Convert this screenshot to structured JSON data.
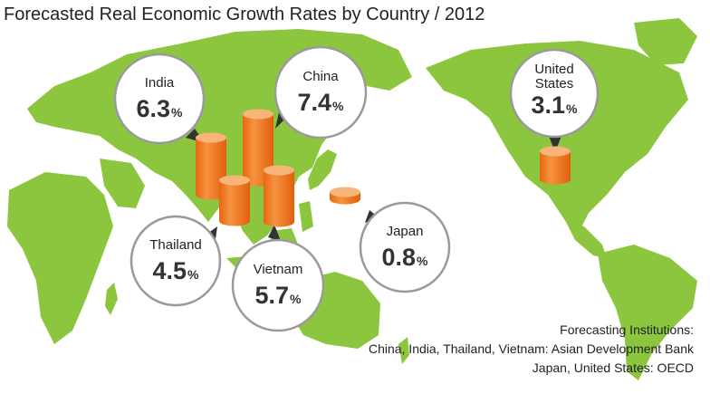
{
  "chart_data": {
    "type": "bar",
    "title": "Forecasted Real Economic Growth Rates by Country / 2012",
    "unit": "%",
    "categories": [
      "India",
      "China",
      "United States",
      "Thailand",
      "Vietnam",
      "Japan"
    ],
    "labels": [
      [
        "India"
      ],
      [
        "China"
      ],
      [
        "United",
        "States"
      ],
      [
        "Thailand"
      ],
      [
        "Vietnam"
      ],
      [
        "Japan"
      ]
    ],
    "values": [
      6.3,
      7.4,
      3.1,
      4.5,
      5.7,
      0.8
    ],
    "value_labels": [
      "6.3",
      "7.4",
      "3.1",
      "4.5",
      "5.7",
      "0.8"
    ]
  },
  "source": {
    "heading": "Forecasting Institutions:",
    "lines": [
      "China, India, Thailand, Vietnam: Asian Development Bank",
      "Japan, United States: OECD"
    ]
  },
  "colors": {
    "land": "#8cc63f",
    "cylinder_side": "#f07a1e",
    "cylinder_top": "#f9b47a",
    "bubble_border": "#9a9a9a"
  }
}
